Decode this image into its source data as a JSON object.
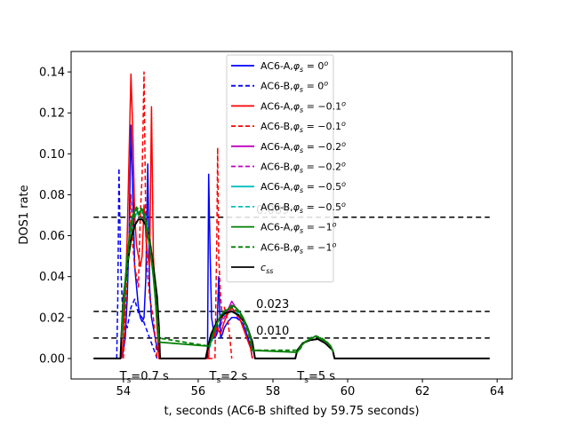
{
  "chart_data": {
    "type": "line",
    "xlabel": "t, seconds (AC6-B shifted by 59.75 seconds)",
    "ylabel": "DOS1 rate",
    "xlim": [
      52.6,
      64.4
    ],
    "ylim": [
      -0.01,
      0.15
    ],
    "xticks": [
      "54",
      "56",
      "58",
      "60",
      "62",
      "64"
    ],
    "yticks": [
      "0.00",
      "0.02",
      "0.04",
      "0.06",
      "0.08",
      "0.10",
      "0.12",
      "0.14"
    ],
    "grid": false,
    "legend_position": "top-center",
    "thresholds": [
      {
        "label": "0.069",
        "value": 0.069
      },
      {
        "label": "0.023",
        "value": 0.023
      },
      {
        "label": "0.010",
        "value": 0.01
      }
    ],
    "annotations": [
      {
        "text": "T",
        "sub": "s",
        "rest": "=0.7 s",
        "x": 53.9,
        "y": -0.007
      },
      {
        "text": "T",
        "sub": "s",
        "rest": "=2 s",
        "x": 56.3,
        "y": -0.007
      },
      {
        "text": "T",
        "sub": "s",
        "rest": "=5 s",
        "x": 58.65,
        "y": -0.007
      }
    ],
    "legend": [
      {
        "id": "a0",
        "label_pre": "AC6-A,",
        "phi": "0",
        "color": "#0000ff",
        "dash": false
      },
      {
        "id": "b0",
        "label_pre": "AC6-B,",
        "phi": "0",
        "color": "#0000ff",
        "dash": true
      },
      {
        "id": "a01",
        "label_pre": "AC6-A,",
        "phi": "−0.1",
        "color": "#ff0000",
        "dash": false
      },
      {
        "id": "b01",
        "label_pre": "AC6-B,",
        "phi": "−0.1",
        "color": "#ff0000",
        "dash": true
      },
      {
        "id": "a02",
        "label_pre": "AC6-A,",
        "phi": "−0.2",
        "color": "#bf00bf",
        "dash": false
      },
      {
        "id": "b02",
        "label_pre": "AC6-B,",
        "phi": "−0.2",
        "color": "#bf00bf",
        "dash": true
      },
      {
        "id": "a05",
        "label_pre": "AC6-A,",
        "phi": "−0.5",
        "color": "#00bfbf",
        "dash": false
      },
      {
        "id": "b05",
        "label_pre": "AC6-B,",
        "phi": "−0.5",
        "color": "#00bfbf",
        "dash": true
      },
      {
        "id": "a1",
        "label_pre": "AC6-A,",
        "phi": "−1",
        "color": "#007f00",
        "dash": false
      },
      {
        "id": "b1",
        "label_pre": "AC6-B,",
        "phi": "−1",
        "color": "#007f00",
        "dash": true
      },
      {
        "id": "css",
        "label_pre": "",
        "phi": "",
        "color": "#000000",
        "dash": false
      }
    ],
    "series": [
      {
        "id": "css",
        "color": "#000000",
        "dash": false,
        "width": 2,
        "x": [
          53.2,
          53.92,
          53.95,
          54.0,
          54.1,
          54.2,
          54.3,
          54.4,
          54.5,
          54.6,
          54.7,
          54.8,
          54.9,
          54.95,
          54.98,
          56.2,
          56.28,
          56.35,
          56.5,
          56.7,
          56.9,
          57.1,
          57.3,
          57.45,
          57.52,
          58.6,
          58.65,
          58.8,
          59.0,
          59.2,
          59.4,
          59.6,
          59.65,
          63.8
        ],
        "y": [
          0,
          0,
          0.012,
          0.03,
          0.045,
          0.058,
          0.065,
          0.068,
          0.068,
          0.065,
          0.058,
          0.045,
          0.03,
          0.015,
          0,
          0,
          0.007,
          0.012,
          0.018,
          0.022,
          0.023,
          0.021,
          0.016,
          0.008,
          0,
          0,
          0.004,
          0.0075,
          0.009,
          0.0095,
          0.0075,
          0.004,
          0,
          0
        ]
      },
      {
        "id": "a0",
        "color": "#0000ff",
        "dash": false,
        "width": 1.5,
        "x": [
          53.95,
          54.0,
          54.05,
          54.1,
          54.15,
          54.2,
          54.25,
          54.3,
          54.35,
          54.4,
          54.45,
          54.5,
          54.55,
          54.6,
          54.65,
          54.7,
          54.75,
          54.8,
          54.85,
          54.9,
          54.95,
          54.98,
          56.25,
          56.28,
          56.32,
          56.36,
          56.4,
          56.45,
          56.5,
          56.55,
          56.6,
          56.65,
          56.7,
          56.8,
          56.9,
          57.0,
          57.1,
          57.2,
          57.3,
          57.4,
          57.45
        ],
        "y": [
          0,
          0.004,
          0.01,
          0.03,
          0.06,
          0.114,
          0.08,
          0.045,
          0.035,
          0.025,
          0.02,
          0.018,
          0.02,
          0.04,
          0.095,
          0.035,
          0.02,
          0.015,
          0.01,
          0.005,
          0.002,
          0,
          0,
          0.09,
          0.05,
          0.02,
          0.015,
          0.01,
          0.012,
          0.04,
          0.01,
          0.012,
          0.015,
          0.018,
          0.02,
          0.02,
          0.019,
          0.017,
          0.012,
          0.006,
          0
        ]
      },
      {
        "id": "b0",
        "color": "#0000ff",
        "dash": true,
        "width": 1.5,
        "x": [
          53.82,
          53.85,
          53.88,
          53.92,
          53.96,
          54.0,
          54.1,
          54.2,
          54.3,
          54.4,
          54.5,
          54.6,
          54.7,
          54.8,
          54.9
        ],
        "y": [
          0,
          0.03,
          0.093,
          0.05,
          0.03,
          0.02,
          0.015,
          0.025,
          0.029,
          0.022,
          0.02,
          0.015,
          0.01,
          0.005,
          0
        ]
      },
      {
        "id": "a01",
        "color": "#ff0000",
        "dash": false,
        "width": 1.5,
        "x": [
          53.95,
          54.0,
          54.05,
          54.1,
          54.15,
          54.2,
          54.25,
          54.3,
          54.35,
          54.4,
          54.45,
          54.5,
          54.55,
          54.6,
          54.65,
          54.7,
          54.75,
          54.8,
          54.85,
          54.9,
          54.95,
          56.28,
          56.3,
          56.35,
          56.4,
          56.5,
          56.6,
          56.7,
          56.8,
          56.9,
          57.0,
          57.1,
          57.2,
          57.3,
          57.4,
          57.45
        ],
        "y": [
          0,
          0.01,
          0.03,
          0.06,
          0.1,
          0.139,
          0.11,
          0.07,
          0.055,
          0.05,
          0.045,
          0.05,
          0.075,
          0.06,
          0.05,
          0.045,
          0.123,
          0.05,
          0.03,
          0.015,
          0,
          0,
          0.008,
          0.012,
          0.01,
          0.015,
          0.012,
          0.018,
          0.022,
          0.025,
          0.022,
          0.02,
          0.015,
          0.01,
          0.005,
          0
        ]
      },
      {
        "id": "b01",
        "color": "#ff0000",
        "dash": true,
        "width": 1.5,
        "x": [
          54.0,
          54.05,
          54.1,
          54.15,
          54.2,
          54.25,
          54.3,
          54.35,
          54.4,
          54.45,
          54.5,
          54.55,
          54.6,
          54.65,
          54.7,
          54.75,
          54.8,
          54.85,
          54.9,
          56.45,
          56.5,
          56.52,
          56.55,
          56.6,
          56.65,
          56.7,
          56.75,
          56.8,
          56.85,
          56.9
        ],
        "y": [
          0,
          0.02,
          0.04,
          0.06,
          0.08,
          0.055,
          0.045,
          0.04,
          0.035,
          0.07,
          0.09,
          0.14,
          0.06,
          0.04,
          0.03,
          0.025,
          0.02,
          0.01,
          0,
          0,
          0.06,
          0.103,
          0.05,
          0.03,
          0.02,
          0.025,
          0.022,
          0.018,
          0.01,
          0
        ]
      },
      {
        "id": "a02",
        "color": "#bf00bf",
        "dash": false,
        "width": 1.5,
        "x": [
          56.5,
          56.6,
          56.7,
          56.8,
          56.9,
          57.0,
          57.1,
          57.2,
          57.3
        ],
        "y": [
          0.012,
          0.018,
          0.022,
          0.024,
          0.028,
          0.025,
          0.023,
          0.02,
          0.015
        ]
      },
      {
        "id": "b02",
        "color": "#bf00bf",
        "dash": true,
        "width": 1.5,
        "x": [
          56.6,
          56.7,
          56.8,
          56.9,
          57.0,
          57.1
        ],
        "y": [
          0.016,
          0.02,
          0.023,
          0.026,
          0.022,
          0.018
        ]
      },
      {
        "id": "a05",
        "color": "#00bfbf",
        "dash": false,
        "width": 1.5,
        "x": [
          53.95,
          54.05,
          54.15,
          54.25,
          54.35,
          54.45,
          54.55,
          54.65,
          54.75,
          54.85,
          54.95
        ],
        "y": [
          0.01,
          0.035,
          0.055,
          0.066,
          0.071,
          0.072,
          0.07,
          0.062,
          0.05,
          0.032,
          0.01
        ]
      },
      {
        "id": "b05",
        "color": "#00bfbf",
        "dash": true,
        "width": 1.5,
        "x": [
          56.3,
          56.5,
          56.7,
          56.9,
          57.1,
          57.3,
          57.45
        ],
        "y": [
          0.005,
          0.015,
          0.021,
          0.024,
          0.022,
          0.016,
          0.006
        ]
      },
      {
        "id": "a1",
        "color": "#007f00",
        "dash": false,
        "width": 1.8,
        "x": [
          53.95,
          54.0,
          54.05,
          54.1,
          54.15,
          54.2,
          54.25,
          54.3,
          54.35,
          54.4,
          54.45,
          54.5,
          54.55,
          54.6,
          54.65,
          54.7,
          54.75,
          54.8,
          54.85,
          54.9,
          54.95,
          56.3,
          56.4,
          56.5,
          56.6,
          56.7,
          56.8,
          56.9,
          57.0,
          57.1,
          57.2,
          57.3,
          57.4,
          57.45,
          58.65,
          58.75,
          58.85,
          58.95,
          59.05,
          59.15,
          59.25,
          59.35,
          59.45,
          59.55,
          59.62
        ],
        "y": [
          0.012,
          0.028,
          0.038,
          0.05,
          0.058,
          0.066,
          0.07,
          0.072,
          0.074,
          0.07,
          0.072,
          0.073,
          0.07,
          0.066,
          0.06,
          0.055,
          0.048,
          0.04,
          0.03,
          0.018,
          0.008,
          0.006,
          0.012,
          0.017,
          0.021,
          0.023,
          0.024,
          0.026,
          0.025,
          0.023,
          0.02,
          0.016,
          0.01,
          0.004,
          0.003,
          0.006,
          0.008,
          0.009,
          0.01,
          0.011,
          0.01,
          0.009,
          0.008,
          0.006,
          0.003
        ]
      },
      {
        "id": "b1",
        "color": "#007f00",
        "dash": true,
        "width": 1.8,
        "x": [
          53.95,
          54.05,
          54.15,
          54.25,
          54.35,
          54.45,
          54.55,
          54.65,
          54.75,
          54.85,
          54.95,
          56.3,
          56.45,
          56.6,
          56.75,
          56.9,
          57.05,
          57.2,
          57.35,
          57.45,
          58.7,
          58.85,
          59.0,
          59.15,
          59.3,
          59.45,
          59.6
        ],
        "y": [
          0.01,
          0.033,
          0.055,
          0.067,
          0.073,
          0.074,
          0.071,
          0.064,
          0.05,
          0.033,
          0.01,
          0.006,
          0.015,
          0.021,
          0.024,
          0.025,
          0.023,
          0.019,
          0.012,
          0.004,
          0.004,
          0.008,
          0.01,
          0.011,
          0.01,
          0.008,
          0.004
        ]
      }
    ]
  }
}
